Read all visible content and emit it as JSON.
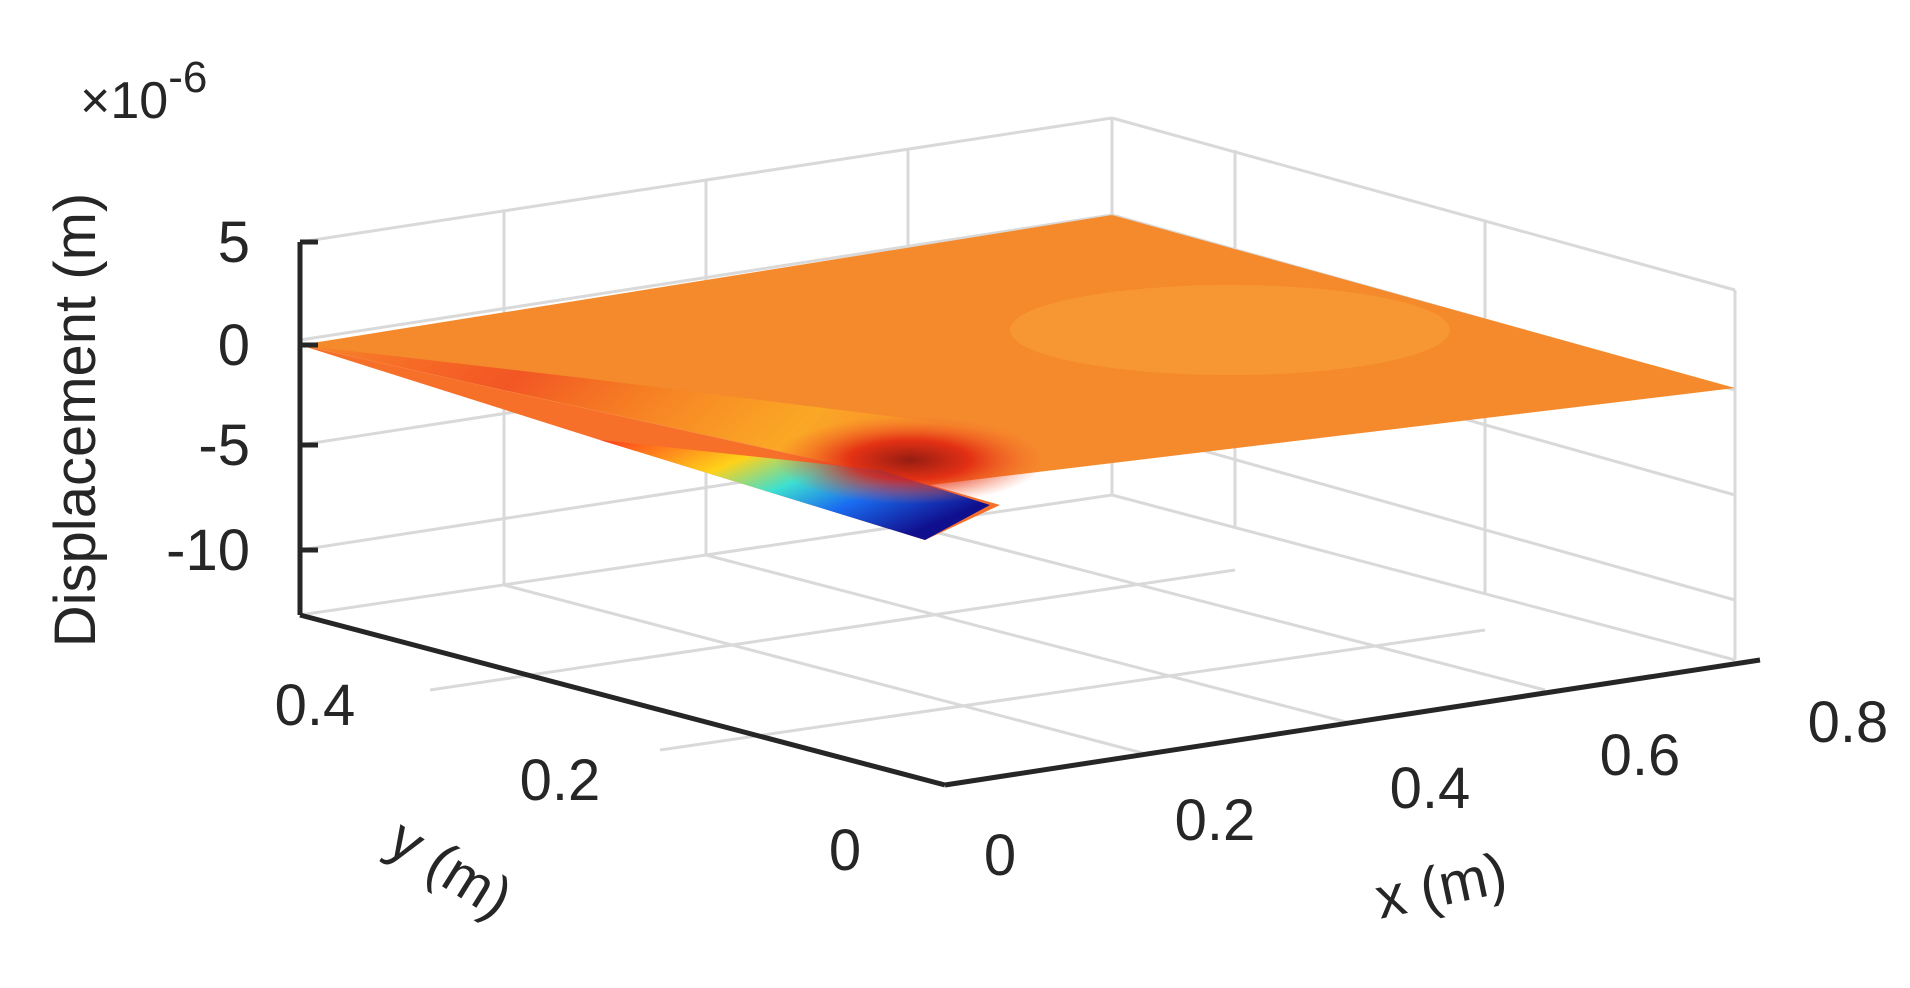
{
  "chart_data": {
    "type": "surface",
    "title": "",
    "xlabel": "x (m)",
    "ylabel": "y (m)",
    "zlabel": "Displacement (m)",
    "z_exponent_label": "×10",
    "z_exponent_power": "-6",
    "xlim": [
      0,
      0.8
    ],
    "ylim": [
      0,
      0.5
    ],
    "zlim": [
      -13,
      10
    ],
    "x_ticks": [
      "0",
      "0.2",
      "0.4",
      "0.6",
      "0.8"
    ],
    "y_ticks": [
      "0",
      "0.2",
      "0.4"
    ],
    "z_ticks": [
      "5",
      "0",
      "-5",
      "-10"
    ],
    "grid": true,
    "colormap": "jet",
    "min_displacement_e6": -10,
    "min_location": {
      "x": 0.2,
      "y": 0.0
    }
  }
}
